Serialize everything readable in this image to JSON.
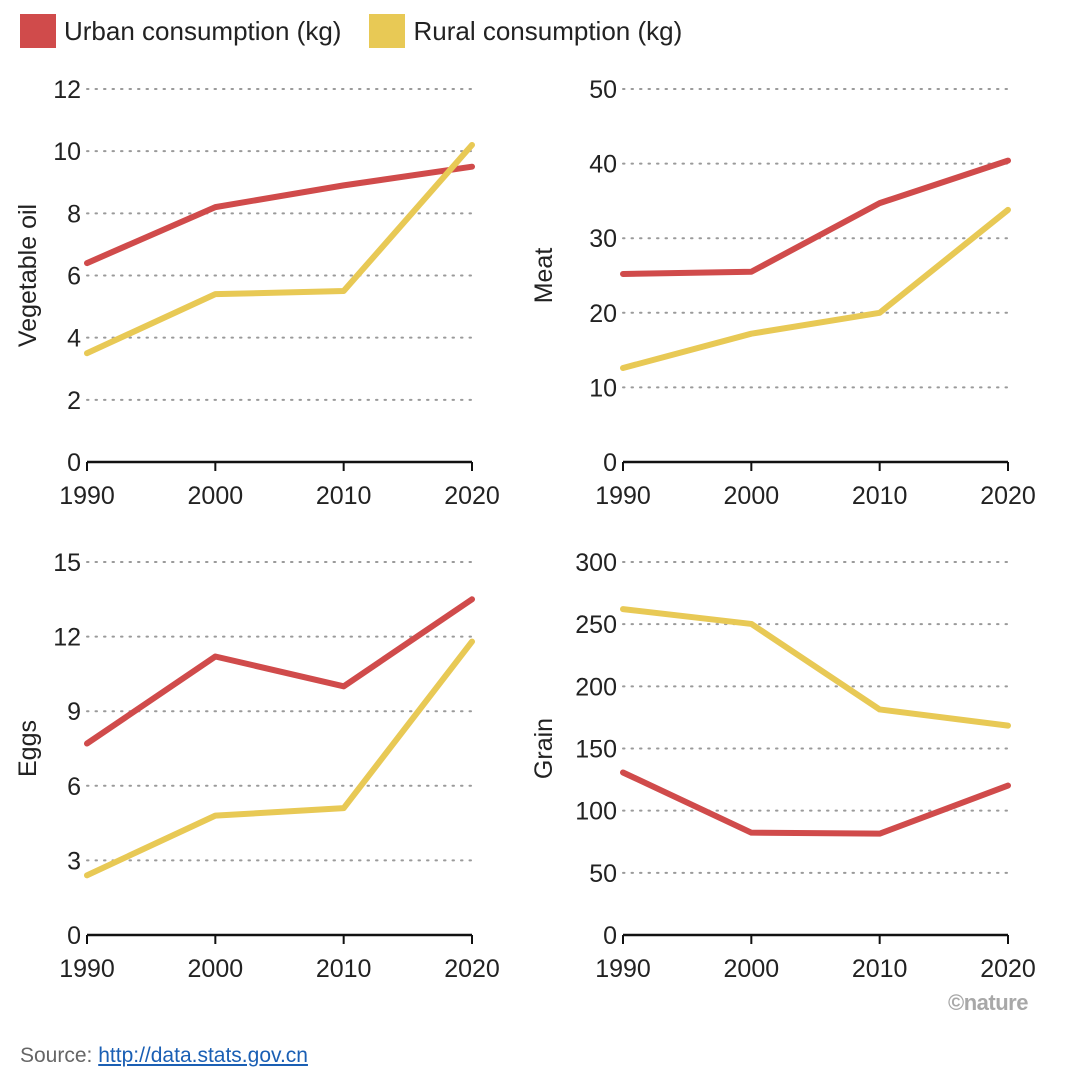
{
  "legend": {
    "urban_label": "Urban consumption (kg)",
    "rural_label": "Rural consumption (kg)",
    "urban_color": "#d04b4b",
    "rural_color": "#e8c955"
  },
  "source": {
    "prefix": "Source: ",
    "link_text": "http://data.stats.gov.cn"
  },
  "credit": "©nature",
  "chart_data": [
    {
      "type": "line",
      "title": "",
      "ylabel": "Vegetable oil",
      "x": [
        1990,
        2000,
        2010,
        2020
      ],
      "ylim": [
        0,
        12
      ],
      "yticks": [
        0,
        2,
        4,
        6,
        8,
        10,
        12
      ],
      "grid": true,
      "series": [
        {
          "name": "Urban consumption (kg)",
          "values": [
            6.4,
            8.2,
            8.9,
            9.5
          ]
        },
        {
          "name": "Rural consumption (kg)",
          "values": [
            3.5,
            5.4,
            5.5,
            10.2
          ]
        }
      ]
    },
    {
      "type": "line",
      "title": "",
      "ylabel": "Meat",
      "x": [
        1990,
        2000,
        2010,
        2020
      ],
      "ylim": [
        0,
        50
      ],
      "yticks": [
        0,
        10,
        20,
        30,
        40,
        50
      ],
      "grid": true,
      "series": [
        {
          "name": "Urban consumption (kg)",
          "values": [
            25.2,
            25.5,
            34.7,
            40.4
          ]
        },
        {
          "name": "Rural consumption (kg)",
          "values": [
            12.6,
            17.2,
            20.0,
            33.8
          ]
        }
      ]
    },
    {
      "type": "line",
      "title": "",
      "ylabel": "Eggs",
      "x": [
        1990,
        2000,
        2010,
        2020
      ],
      "ylim": [
        0,
        15
      ],
      "yticks": [
        0,
        3,
        6,
        9,
        12,
        15
      ],
      "grid": true,
      "series": [
        {
          "name": "Urban consumption (kg)",
          "values": [
            7.7,
            11.2,
            10.0,
            13.5
          ]
        },
        {
          "name": "Rural consumption (kg)",
          "values": [
            2.4,
            4.8,
            5.1,
            11.8
          ]
        }
      ]
    },
    {
      "type": "line",
      "title": "",
      "ylabel": "Grain",
      "x": [
        1990,
        2000,
        2010,
        2020
      ],
      "ylim": [
        0,
        300
      ],
      "yticks": [
        0,
        50,
        100,
        150,
        200,
        250,
        300
      ],
      "grid": true,
      "series": [
        {
          "name": "Urban consumption (kg)",
          "values": [
            130.7,
            82.3,
            81.5,
            120.2
          ]
        },
        {
          "name": "Rural consumption (kg)",
          "values": [
            262.1,
            250.2,
            181.4,
            168.4
          ]
        }
      ]
    }
  ]
}
